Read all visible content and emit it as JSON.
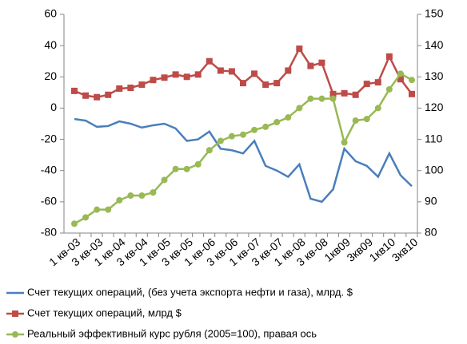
{
  "chart_data": {
    "type": "line",
    "categories": [
      "1 кв-03",
      null,
      "3 кв-03",
      null,
      "1 кв-04",
      null,
      "3 кв-04",
      null,
      "1 кв-05",
      null,
      "3 кв-05",
      null,
      "1 кв-06",
      null,
      "3 кв-06",
      null,
      "1 кв-07",
      null,
      "3 кв-07",
      null,
      "1 кв-08",
      null,
      "3 кв-08",
      null,
      "1кв09",
      null,
      "3кв09",
      null,
      "1кв10",
      null,
      "3кв10"
    ],
    "series": [
      {
        "name": "Счет текущих операций, (без учета экспорта нефти и газа), млрд. $",
        "color": "#4a7ebb",
        "marker": "none",
        "values": [
          -7,
          -8,
          -12,
          -11.5,
          -8.5,
          -10,
          -12.5,
          -11,
          -10,
          -13,
          -21,
          -20,
          -15,
          -26,
          -27,
          -29,
          -21,
          -37,
          -40,
          -44,
          -36,
          -58,
          -60,
          -52,
          -26,
          -34,
          -37,
          -44,
          -29,
          -43,
          -50
        ]
      },
      {
        "name": "Счет текущих операций, млрд $",
        "color": "#be4b48",
        "marker": "square",
        "values": [
          11,
          8,
          7,
          8.5,
          12.5,
          13,
          15,
          18,
          19.5,
          21.5,
          20,
          21.5,
          30,
          24,
          23.5,
          16,
          22,
          15,
          16,
          24,
          38,
          27,
          29,
          9,
          9.5,
          8.5,
          15.5,
          16.5,
          33,
          18.5,
          9
        ]
      },
      {
        "name": "Реальный эффективный курс рубля (2005=100), правая ось",
        "color": "#98b954",
        "marker": "circle",
        "axis": "y2",
        "values": [
          83,
          85,
          87.5,
          87.5,
          90.5,
          92,
          92,
          93,
          97,
          100.5,
          100.5,
          102,
          106.5,
          109.5,
          111,
          111.5,
          113,
          114,
          115.5,
          117,
          120,
          123,
          123,
          123,
          109,
          116,
          116.5,
          120,
          126,
          131,
          129
        ]
      }
    ],
    "ylim": [
      -80,
      60
    ],
    "yticks": [
      -80,
      -60,
      -40,
      -20,
      0,
      20,
      40,
      60
    ],
    "y2lim": [
      80,
      150
    ],
    "y2ticks": [
      80,
      90,
      100,
      110,
      120,
      130,
      140,
      150
    ],
    "legend": "bottom"
  }
}
